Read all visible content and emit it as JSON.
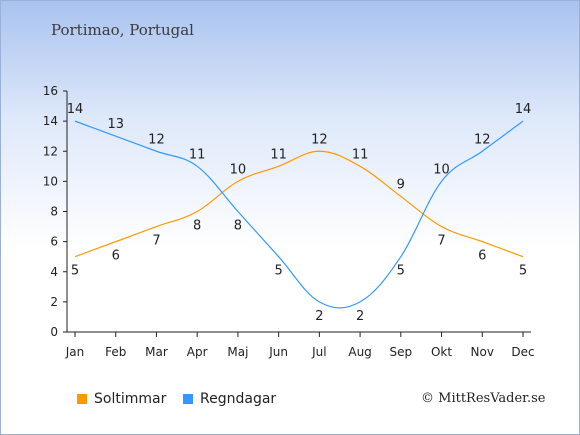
{
  "title": "Portimao, Portugal",
  "copyright": "© MittResVader.se",
  "colors": {
    "soltimmar": "#ff9900",
    "regndagar": "#3399ff",
    "axis": "#222222"
  },
  "chart_data": {
    "type": "line",
    "categories": [
      "Jan",
      "Feb",
      "Mar",
      "Apr",
      "Maj",
      "Jun",
      "Jul",
      "Aug",
      "Sep",
      "Okt",
      "Nov",
      "Dec"
    ],
    "series": [
      {
        "name": "Soltimmar",
        "values": [
          5,
          6,
          7,
          8,
          10,
          11,
          12,
          11,
          9,
          7,
          6,
          5
        ]
      },
      {
        "name": "Regndagar",
        "values": [
          14,
          13,
          12,
          11,
          8,
          5,
          2,
          2,
          5,
          10,
          12,
          14
        ]
      }
    ],
    "yticks": [
      "0",
      "2",
      "4",
      "6",
      "8",
      "10",
      "12",
      "14",
      "16"
    ],
    "ylim": [
      0,
      16
    ],
    "grid": false,
    "legend_position": "bottom-left"
  }
}
